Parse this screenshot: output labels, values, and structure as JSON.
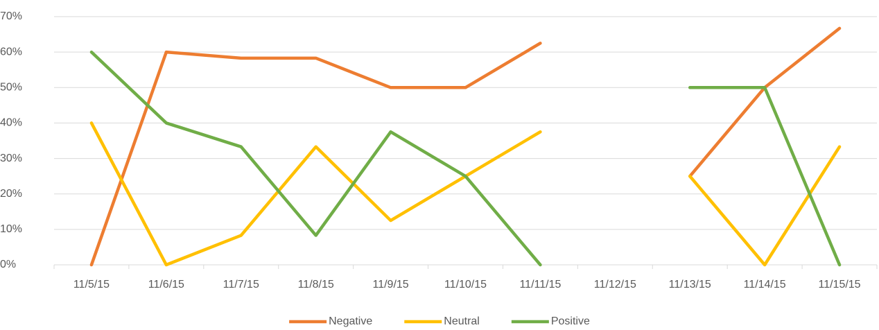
{
  "chart_data": {
    "type": "line",
    "categories": [
      "11/5/15",
      "11/6/15",
      "11/7/15",
      "11/8/15",
      "11/9/15",
      "11/10/15",
      "11/11/15",
      "11/12/15",
      "11/13/15",
      "11/14/15",
      "11/15/15"
    ],
    "series": [
      {
        "name": "Negative",
        "color": "#ed7d31",
        "values": [
          0,
          60,
          58.3,
          58.3,
          50,
          50,
          62.5,
          null,
          25,
          50,
          66.7
        ]
      },
      {
        "name": "Neutral",
        "color": "#ffc000",
        "values": [
          40,
          0,
          8.3,
          33.3,
          12.5,
          25,
          37.5,
          null,
          25,
          0,
          33.3
        ]
      },
      {
        "name": "Positive",
        "color": "#70ad47",
        "values": [
          60,
          40,
          33.3,
          8.3,
          37.5,
          25,
          0,
          null,
          50,
          50,
          0
        ]
      }
    ],
    "ylim": [
      0,
      70
    ],
    "yticks": [
      {
        "value": 0,
        "label": "0%"
      },
      {
        "value": 10,
        "label": "10%"
      },
      {
        "value": 20,
        "label": "20%"
      },
      {
        "value": 30,
        "label": "30%"
      },
      {
        "value": 40,
        "label": "40%"
      },
      {
        "value": 50,
        "label": "50%"
      },
      {
        "value": 60,
        "label": "60%"
      },
      {
        "value": 70,
        "label": "70%"
      }
    ],
    "grid": true,
    "legend": "bottom"
  }
}
